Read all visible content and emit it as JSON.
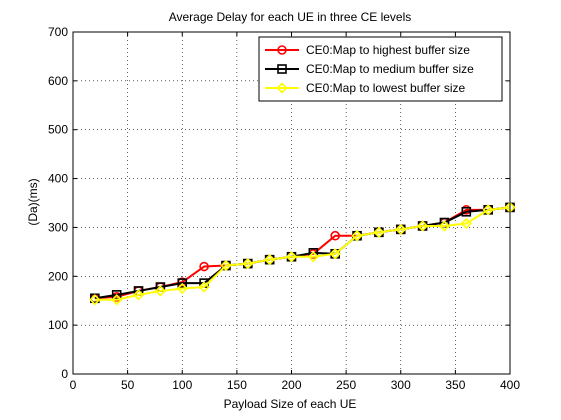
{
  "chart_data": {
    "type": "line",
    "title": "Average Delay for each UE in three CE levels",
    "xlabel": "Payload Size of each UE",
    "ylabel": "(Da)(ms)",
    "xlim": [
      0,
      400
    ],
    "ylim": [
      0,
      700
    ],
    "xticks": [
      0,
      50,
      100,
      150,
      200,
      250,
      300,
      350,
      400
    ],
    "yticks": [
      0,
      100,
      200,
      300,
      400,
      500,
      600,
      700
    ],
    "grid": "dotted",
    "legend_position": "top-right",
    "x": [
      20,
      40,
      60,
      80,
      100,
      120,
      140,
      160,
      180,
      200,
      220,
      240,
      260,
      280,
      300,
      320,
      340,
      360,
      380,
      400
    ],
    "series": [
      {
        "name": "CE0:Map to highest buffer size",
        "color": "#ff0000",
        "marker": "circle",
        "values": [
          155,
          158,
          170,
          178,
          188,
          220,
          222,
          226,
          234,
          240,
          246,
          283,
          283,
          290,
          296,
          303,
          310,
          336,
          336,
          341
        ]
      },
      {
        "name": "CE0:Map to medium buffer size",
        "color": "#000000",
        "marker": "square",
        "values": [
          155,
          162,
          170,
          178,
          186,
          186,
          222,
          226,
          234,
          240,
          248,
          246,
          283,
          290,
          296,
          303,
          310,
          332,
          336,
          341
        ]
      },
      {
        "name": "CE0:Map to lowest buffer size",
        "color": "#ffff00",
        "marker": "diamond",
        "values": [
          152,
          152,
          162,
          170,
          175,
          178,
          222,
          226,
          234,
          240,
          240,
          246,
          283,
          290,
          296,
          303,
          303,
          308,
          336,
          341
        ]
      }
    ]
  }
}
